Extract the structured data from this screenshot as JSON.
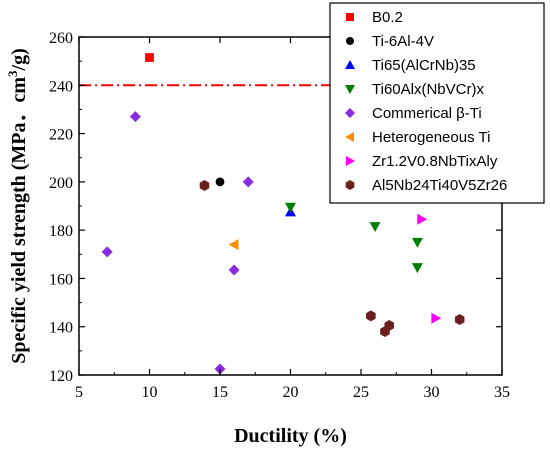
{
  "chart_data": {
    "type": "scatter",
    "xlabel": "Ductility (%)",
    "ylabel_prefix": "Specific yield strength (MPa．cm",
    "ylabel_sup": "3",
    "ylabel_suffix": "/g)",
    "xlim": [
      5,
      35
    ],
    "ylim": [
      120,
      260
    ],
    "xticks": [
      5,
      10,
      15,
      20,
      25,
      30,
      35
    ],
    "yticks": [
      120,
      140,
      160,
      180,
      200,
      220,
      240,
      260
    ],
    "legend_position": "top-right",
    "reference_line": {
      "y": 240,
      "style": "dash-dot",
      "color": "#ff0000"
    },
    "series": [
      {
        "name": "B0.2",
        "marker": "square",
        "color": "#ff0000",
        "points": [
          [
            10,
            251.5
          ]
        ]
      },
      {
        "name": "Ti-6Al-4V",
        "marker": "circle",
        "color": "#000000",
        "points": [
          [
            15,
            200
          ]
        ]
      },
      {
        "name": "Ti65(AlCrNb)35",
        "marker": "triangle-up",
        "color": "#0000ff",
        "points": [
          [
            20,
            187.5
          ]
        ]
      },
      {
        "name": "Ti60Alx(NbVCr)x",
        "marker": "triangle-down",
        "color": "#008000",
        "points": [
          [
            20,
            189.5
          ],
          [
            26,
            181.5
          ],
          [
            29,
            175
          ],
          [
            29,
            164.5
          ]
        ]
      },
      {
        "name": "Commerical β-Ti",
        "marker": "diamond",
        "color": "#8a2be2",
        "points": [
          [
            7,
            171
          ],
          [
            9,
            227
          ],
          [
            15,
            122.5
          ],
          [
            16,
            163.5
          ],
          [
            17,
            200
          ]
        ]
      },
      {
        "name": "Heterogeneous Ti",
        "marker": "triangle-left",
        "color": "#ff8c00",
        "points": [
          [
            16,
            174
          ]
        ]
      },
      {
        "name": "Zr1.2V0.8NbTixAly",
        "marker": "triangle-right",
        "color": "#ff00ff",
        "points": [
          [
            29.3,
            184.5
          ],
          [
            30.3,
            143.5
          ]
        ]
      },
      {
        "name": "Al5Nb24Ti40V5Zr26",
        "marker": "hexagon",
        "color": "#6b1f1f",
        "points": [
          [
            13.9,
            198.5
          ],
          [
            25.7,
            144.5
          ],
          [
            26.7,
            138
          ],
          [
            27,
            140.5
          ],
          [
            32,
            143
          ]
        ]
      }
    ]
  }
}
